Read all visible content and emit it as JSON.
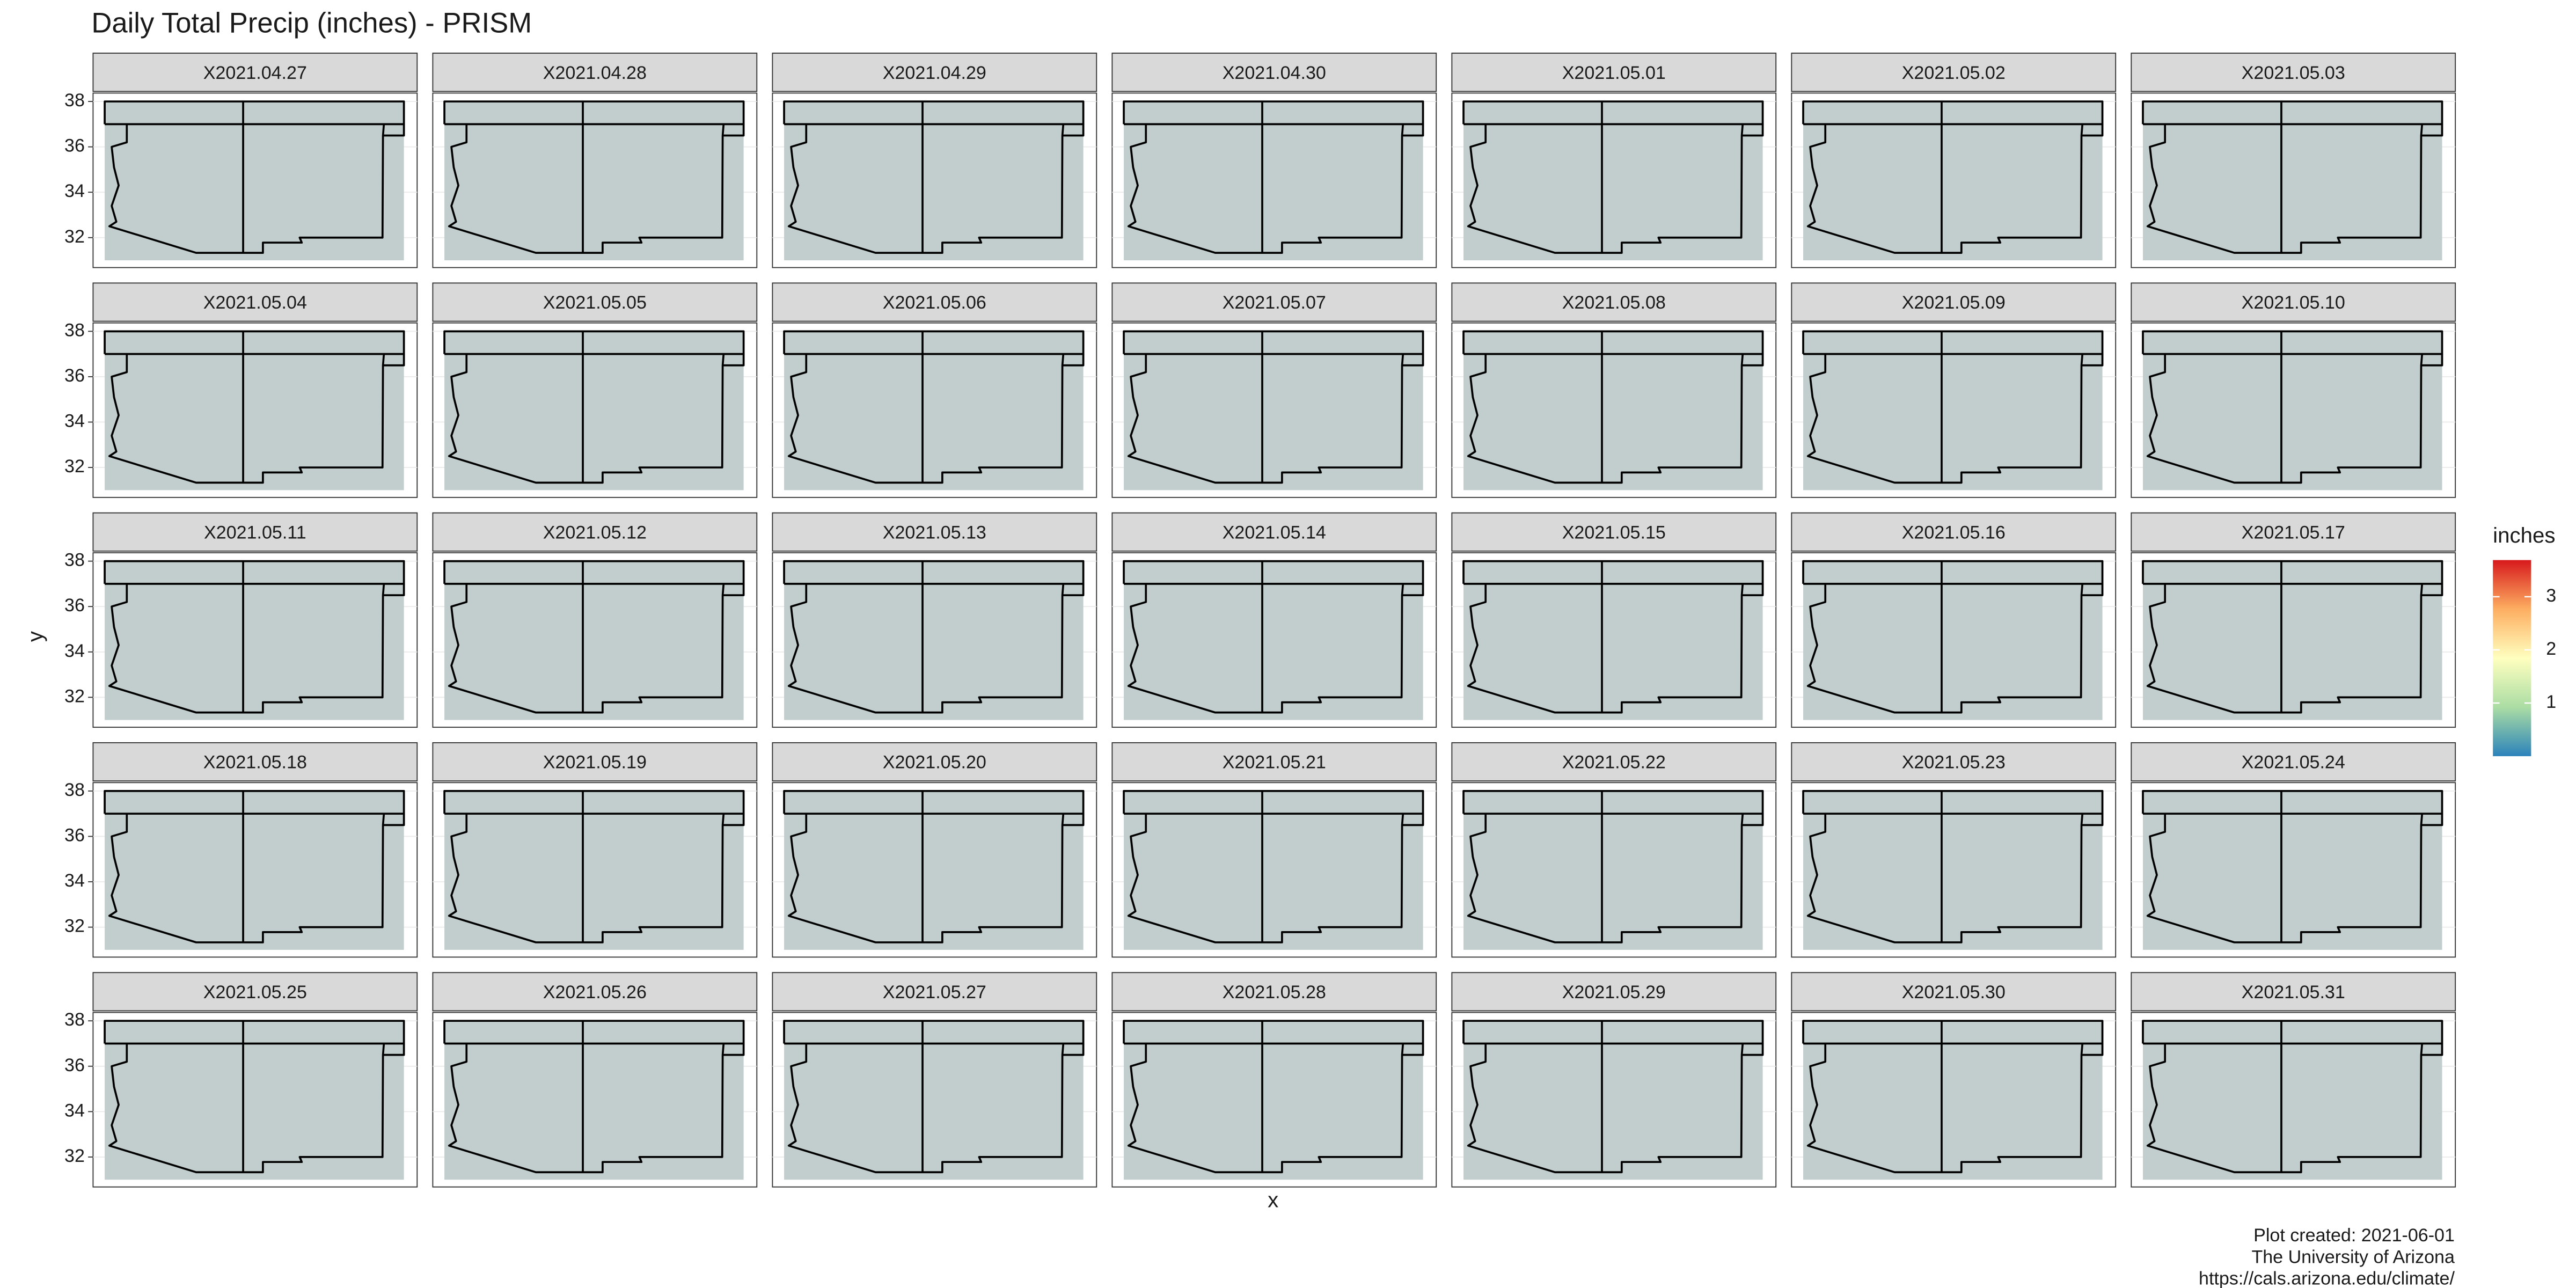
{
  "chart_data": {
    "type": "raster",
    "title": "Daily Total Precip (inches) - PRISM",
    "x_label": "x",
    "y_label": "y",
    "ylim": [
      30.68,
      38.37
    ],
    "yticks": [
      32,
      34,
      36,
      38
    ],
    "grid": true,
    "columns": 7,
    "map_fill": "#c2cece",
    "facets": [
      "X2021.04.27",
      "X2021.04.28",
      "X2021.04.29",
      "X2021.04.30",
      "X2021.05.01",
      "X2021.05.02",
      "X2021.05.03",
      "X2021.05.04",
      "X2021.05.05",
      "X2021.05.06",
      "X2021.05.07",
      "X2021.05.08",
      "X2021.05.09",
      "X2021.05.10",
      "X2021.05.11",
      "X2021.05.12",
      "X2021.05.13",
      "X2021.05.14",
      "X2021.05.15",
      "X2021.05.16",
      "X2021.05.17",
      "X2021.05.18",
      "X2021.05.19",
      "X2021.05.20",
      "X2021.05.21",
      "X2021.05.22",
      "X2021.05.23",
      "X2021.05.24",
      "X2021.05.25",
      "X2021.05.26",
      "X2021.05.27",
      "X2021.05.28",
      "X2021.05.29",
      "X2021.05.30",
      "X2021.05.31"
    ],
    "colorbar": {
      "title": "inches",
      "lim": [
        0,
        3.69
      ],
      "ticks": [
        1,
        2,
        3
      ],
      "colors": [
        "#2b83ba",
        "#abdda4",
        "#ffffbf",
        "#fdae61",
        "#d7191c"
      ]
    },
    "caption": [
      "Plot created: 2021-06-01",
      "The University of Arizona",
      "https://cals.arizona.edu/climate/"
    ]
  }
}
